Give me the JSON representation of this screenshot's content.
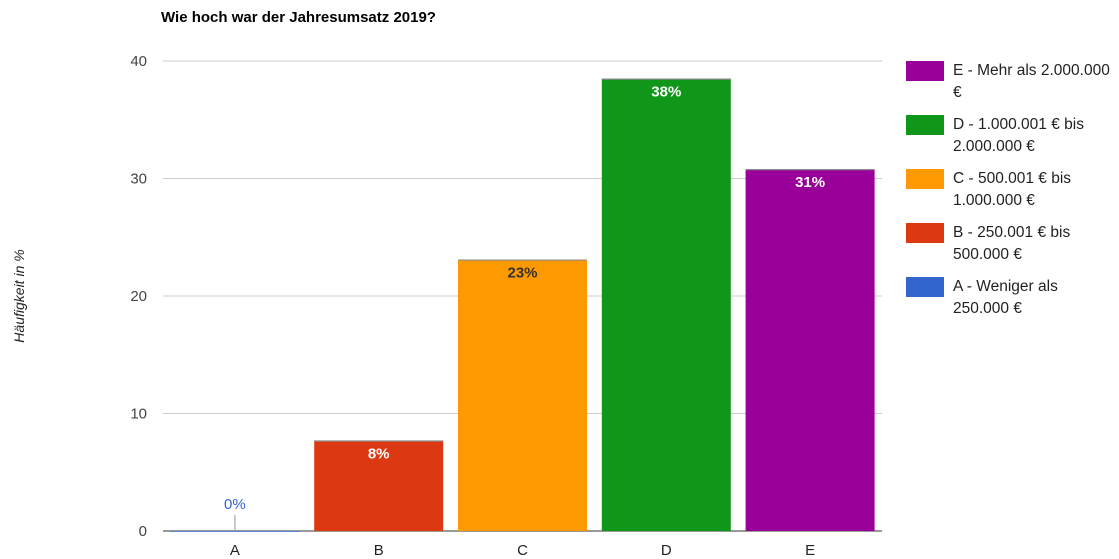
{
  "chart_data": {
    "type": "bar",
    "title": "Wie hoch war der Jahresumsatz 2019?",
    "xlabel": "",
    "ylabel": "Häufigkeit in %",
    "categories": [
      "A",
      "B",
      "C",
      "D",
      "E"
    ],
    "values": [
      0,
      7.7,
      23.1,
      38.5,
      30.8
    ],
    "data_labels": [
      "0%",
      "8%",
      "23%",
      "38%",
      "31%"
    ],
    "colors": [
      "#3366cc",
      "#dc3912",
      "#ff9900",
      "#109618",
      "#990099"
    ],
    "ylim": [
      0,
      40
    ],
    "yticks": [
      0,
      10,
      20,
      30,
      40
    ],
    "grid": true,
    "legend_position": "right",
    "legend": [
      {
        "label": "E - Mehr als 2.000.000 €",
        "color": "#990099"
      },
      {
        "label": "D - 1.000.001 € bis 2.000.000 €",
        "color": "#109618"
      },
      {
        "label": "C - 500.001 € bis 1.000.000 €",
        "color": "#ff9900"
      },
      {
        "label": "B - 250.001 € bis 500.000 €",
        "color": "#dc3912"
      },
      {
        "label": "A - Weniger als 250.000 €",
        "color": "#3366cc"
      }
    ]
  }
}
